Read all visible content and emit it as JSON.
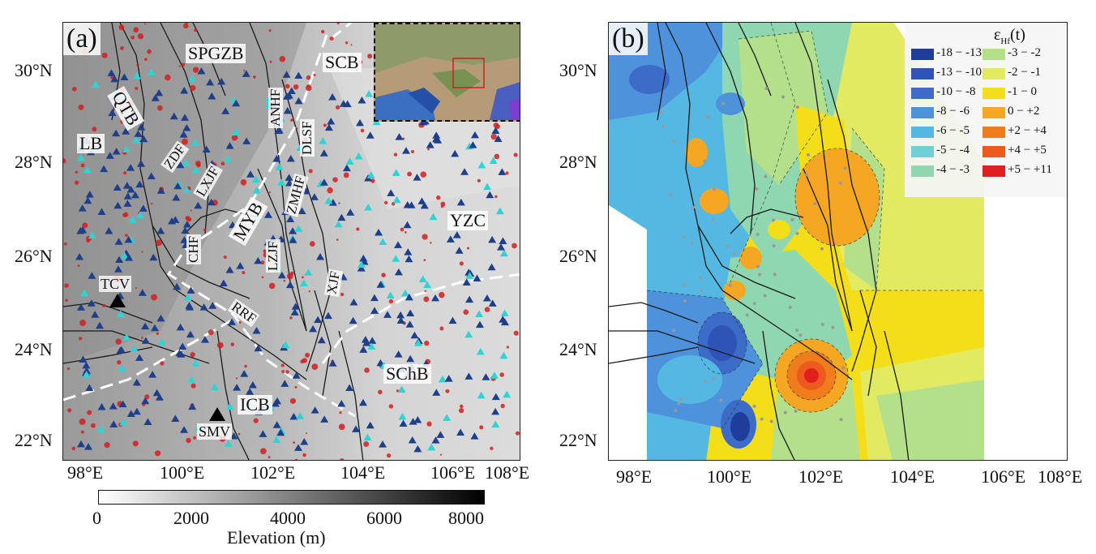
{
  "panel_a": {
    "label": "(a)",
    "lat_ticks": [
      "30°N",
      "28°N",
      "26°N",
      "24°N",
      "22°N"
    ],
    "lon_ticks": [
      "98°E",
      "100°E",
      "102°E",
      "104°E",
      "106°E",
      "108°E"
    ],
    "regions": {
      "spgzb": "SPGZB",
      "scb": "SCB",
      "qtb": "QTB",
      "lb": "LB",
      "yzc": "YZC",
      "myb": "MYB",
      "icb": "ICB",
      "schb": "SChB"
    },
    "faults": {
      "anhf": "ANHF",
      "dlsf": "DLSF",
      "zmhf": "ZMHF",
      "zdf": "ZDF",
      "lxjf": "LXJF",
      "chf": "CHF",
      "lzjf": "LZJF",
      "xjf": "XJF",
      "rrf": "RRF"
    },
    "volcanoes": {
      "tcv": "TCV",
      "smv": "SMV"
    },
    "colorbar": {
      "title": "Elevation (m)",
      "ticks": [
        "0",
        "2000",
        "4000",
        "6000",
        "8000"
      ]
    },
    "colors": {
      "triangle_dark": "#1e3f8a",
      "triangle_cyan": "#2fd3d6",
      "granite": "#d41e1e"
    }
  },
  "panel_b": {
    "label": "(b)",
    "lat_ticks": [
      "30°N",
      "28°N",
      "26°N",
      "24°N",
      "22°N"
    ],
    "lon_ticks": [
      "98°E",
      "100°E",
      "102°E",
      "104°E",
      "106°E",
      "108°E"
    ],
    "legend": {
      "title_main": "ε",
      "title_sub": "Hf",
      "title_tail": "(t)",
      "left": [
        {
          "label": "-18 − -13",
          "color": "#1f3d9a"
        },
        {
          "label": "-13 − -10",
          "color": "#2e54b8"
        },
        {
          "label": "-10 − -8",
          "color": "#3c6cc8"
        },
        {
          "label": "-8 − -6",
          "color": "#4d92db"
        },
        {
          "label": "-6 − -5",
          "color": "#55b8e2"
        },
        {
          "label": "-5 − -4",
          "color": "#6fd0d8"
        },
        {
          "label": "-4 − -3",
          "color": "#8ed7b0"
        }
      ],
      "right": [
        {
          "label": "-3 − -2",
          "color": "#b4e08c"
        },
        {
          "label": "-2 − -1",
          "color": "#e2ea62"
        },
        {
          "label": "-1 − 0",
          "color": "#f4de1a"
        },
        {
          "label": "0 − +2",
          "color": "#f5a623"
        },
        {
          "label": "+2 − +4",
          "color": "#f07d1c"
        },
        {
          "label": "+4 − +5",
          "color": "#ec5a1e"
        },
        {
          "label": "+5 − +11",
          "color": "#e21f1f"
        }
      ]
    }
  }
}
